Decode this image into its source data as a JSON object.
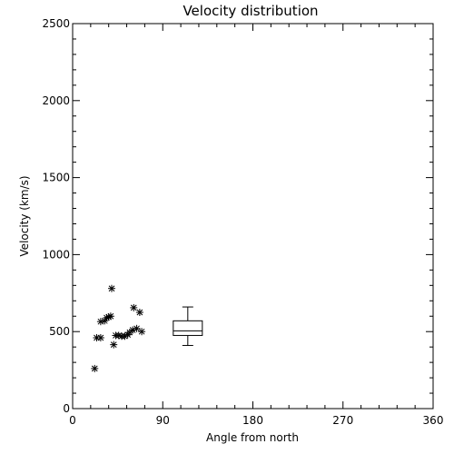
{
  "chart_data": {
    "type": "scatter",
    "title": "Velocity distribution",
    "xlabel": "Angle from north",
    "ylabel": "Velocity (km/s)",
    "xlim": [
      0,
      360
    ],
    "ylim": [
      0,
      2500
    ],
    "xticks": [
      0,
      90,
      180,
      270,
      360
    ],
    "yticks": [
      0,
      500,
      1000,
      1500,
      2000,
      2500
    ],
    "grid": false,
    "marker": "asterisk",
    "points": [
      {
        "x": 22,
        "y": 260
      },
      {
        "x": 24,
        "y": 460
      },
      {
        "x": 28,
        "y": 460
      },
      {
        "x": 28,
        "y": 565
      },
      {
        "x": 32,
        "y": 570
      },
      {
        "x": 34,
        "y": 590
      },
      {
        "x": 36,
        "y": 595
      },
      {
        "x": 38,
        "y": 600
      },
      {
        "x": 39,
        "y": 780
      },
      {
        "x": 41,
        "y": 415
      },
      {
        "x": 43,
        "y": 475
      },
      {
        "x": 46,
        "y": 475
      },
      {
        "x": 49,
        "y": 470
      },
      {
        "x": 52,
        "y": 470
      },
      {
        "x": 55,
        "y": 480
      },
      {
        "x": 57,
        "y": 495
      },
      {
        "x": 60,
        "y": 510
      },
      {
        "x": 61,
        "y": 655
      },
      {
        "x": 64,
        "y": 520
      },
      {
        "x": 67,
        "y": 625
      },
      {
        "x": 69,
        "y": 500
      }
    ],
    "boxplot": {
      "x": 115,
      "min": 410,
      "q1": 475,
      "median": 505,
      "q3": 570,
      "max": 660
    }
  }
}
